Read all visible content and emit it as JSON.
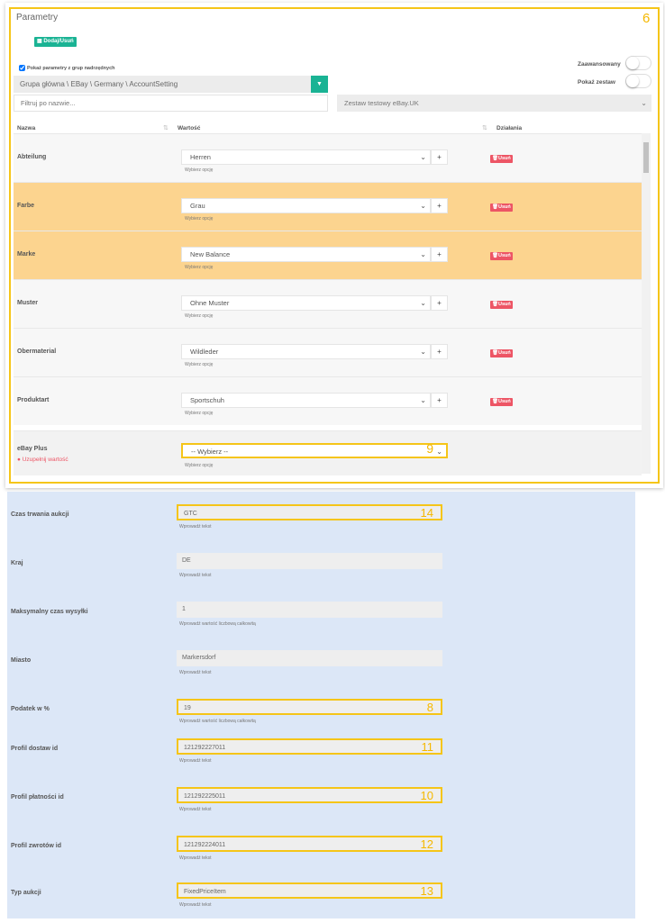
{
  "panel": {
    "title": "Parametry",
    "annotation": "6",
    "add_remove": "Dodaj/Usuń",
    "show_parent_label": "Pokaż parametry z grup nadrzędnych",
    "group_path": "Grupa główna \\ EBay \\ Germany \\ AccountSetting",
    "filter_placeholder": "Filtruj po nazwie...",
    "set_select": "Zestaw testowy eBay.UK",
    "advanced_label": "Zaawansowany",
    "show_set_label": "Pokaż zestaw"
  },
  "table": {
    "headers": {
      "name": "Nazwa",
      "value": "Wartość",
      "actions": "Działania"
    },
    "rows": [
      {
        "name": "Abteilung",
        "value": "Herren",
        "hint": "Wybierz opcję",
        "delete": "Usuń",
        "highlighted": false
      },
      {
        "name": "Farbe",
        "value": "Grau",
        "hint": "Wybierz opcję",
        "delete": "Usuń",
        "highlighted": true
      },
      {
        "name": "Marke",
        "value": "New Balance",
        "hint": "Wybierz opcję",
        "delete": "Usuń",
        "highlighted": true
      },
      {
        "name": "Muster",
        "value": "Ohne Muster",
        "hint": "Wybierz opcję",
        "delete": "Usuń",
        "highlighted": false
      },
      {
        "name": "Obermaterial",
        "value": "Wildleder",
        "hint": "Wybierz opcję",
        "delete": "Usuń",
        "highlighted": false
      },
      {
        "name": "Produktart",
        "value": "Sportschuh",
        "hint": "Wybierz opcję",
        "delete": "Usuń",
        "highlighted": false
      }
    ],
    "ebay_plus": {
      "name": "eBay Plus",
      "error": "Uzupełnij wartość",
      "value": "-- Wybierz --",
      "hint": "Wybierz opcję",
      "annotation": "9"
    }
  },
  "fields": [
    {
      "label": "Czas trwania aukcji",
      "value": "GTC",
      "hint": "Wprowadź tekst",
      "annotation": "14"
    },
    {
      "label": "Kraj",
      "value": "DE",
      "hint": "Wprowadź tekst",
      "annotation": ""
    },
    {
      "label": "Maksymalny czas wysyłki",
      "value": "1",
      "hint": "Wprowadź wartość liczbową całkowitą",
      "annotation": ""
    },
    {
      "label": "Miasto",
      "value": "Markersdorf",
      "hint": "Wprowadź tekst",
      "annotation": ""
    },
    {
      "label": "Podatek w %",
      "value": "19",
      "hint": "Wprowadź wartość liczbową całkowitą",
      "annotation": "8"
    },
    {
      "label": "Profil dostaw id",
      "value": "121292227011",
      "hint": "Wprowadź tekst",
      "annotation": "11"
    },
    {
      "label": "Profil płatności id",
      "value": "121292225011",
      "hint": "Wprowadź tekst",
      "annotation": "10"
    },
    {
      "label": "Profil zwrotów id",
      "value": "121292224011",
      "hint": "Wprowadź tekst",
      "annotation": "12"
    },
    {
      "label": "Typ aukcji",
      "value": "FixedPriceItem",
      "hint": "Wprowadź tekst",
      "annotation": "13"
    }
  ],
  "colors": {
    "accent": "#1ab394",
    "danger": "#ed5565",
    "highlight_row": "#fcd48f",
    "annotation": "#f5c518",
    "section_bg": "#dce7f7"
  }
}
